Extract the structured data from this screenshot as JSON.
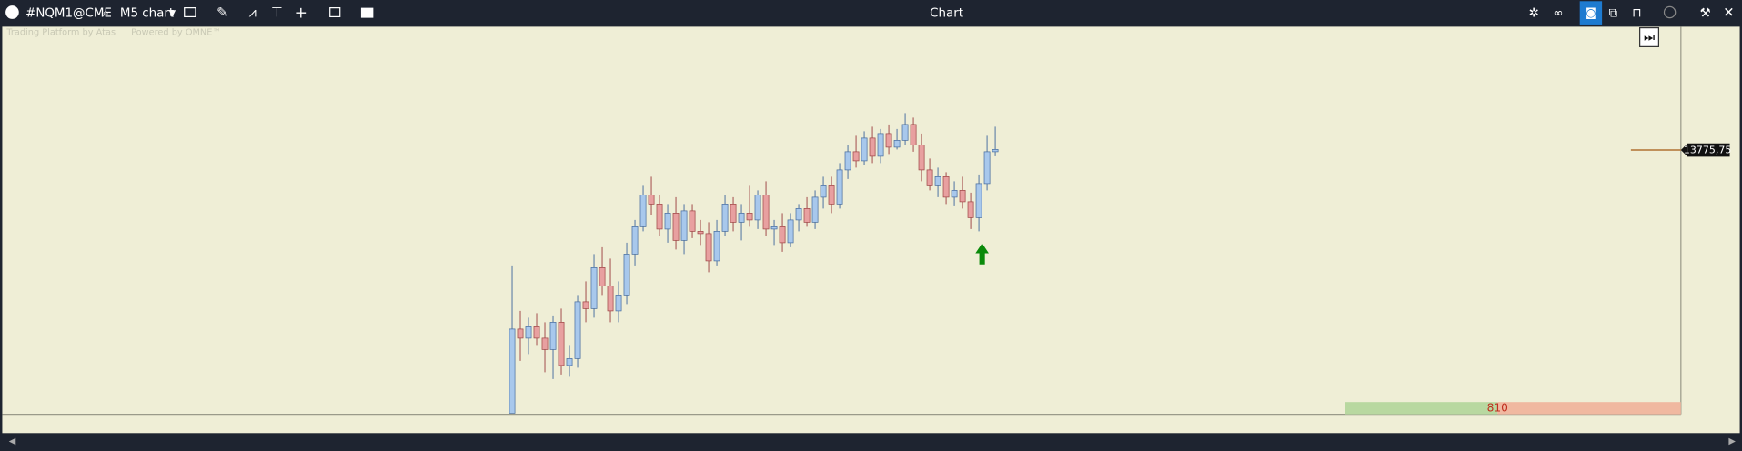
{
  "toolbar": {
    "symbol": "#NQM1@CME",
    "timeframe": "M5 chart",
    "title": "Chart"
  },
  "watermark": {
    "platform": "Trading Platform by Atas",
    "powered": "Powered by OMNE™"
  },
  "chart_data": {
    "type": "candlestick",
    "ylim": [
      13660,
      13830
    ],
    "last_price": {
      "value": 13775.75,
      "label": "13775,75"
    },
    "volume_label": "810",
    "candles": [
      [
        13660,
        13725,
        13660,
        13697
      ],
      [
        13697,
        13705,
        13683,
        13693
      ],
      [
        13693,
        13702,
        13686,
        13698
      ],
      [
        13698,
        13704,
        13690,
        13693
      ],
      [
        13693,
        13700,
        13678,
        13688
      ],
      [
        13688,
        13703,
        13675,
        13700
      ],
      [
        13700,
        13706,
        13677,
        13681
      ],
      [
        13681,
        13690,
        13676,
        13684
      ],
      [
        13684,
        13712,
        13680,
        13709
      ],
      [
        13709,
        13718,
        13700,
        13706
      ],
      [
        13706,
        13730,
        13702,
        13724
      ],
      [
        13724,
        13733,
        13712,
        13716
      ],
      [
        13716,
        13728,
        13700,
        13705
      ],
      [
        13705,
        13718,
        13700,
        13712
      ],
      [
        13712,
        13735,
        13708,
        13730
      ],
      [
        13730,
        13745,
        13725,
        13742
      ],
      [
        13742,
        13760,
        13740,
        13756
      ],
      [
        13756,
        13764,
        13747,
        13752
      ],
      [
        13752,
        13756,
        13738,
        13741
      ],
      [
        13741,
        13752,
        13735,
        13748
      ],
      [
        13748,
        13755,
        13732,
        13736
      ],
      [
        13736,
        13752,
        13730,
        13749
      ],
      [
        13749,
        13752,
        13737,
        13740
      ],
      [
        13740,
        13745,
        13734,
        13739
      ],
      [
        13739,
        13744,
        13722,
        13727
      ],
      [
        13727,
        13745,
        13725,
        13740
      ],
      [
        13740,
        13756,
        13738,
        13752
      ],
      [
        13752,
        13755,
        13740,
        13744
      ],
      [
        13744,
        13752,
        13736,
        13748
      ],
      [
        13748,
        13760,
        13742,
        13745
      ],
      [
        13745,
        13758,
        13741,
        13756
      ],
      [
        13756,
        13762,
        13738,
        13741
      ],
      [
        13741,
        13745,
        13734,
        13742
      ],
      [
        13742,
        13748,
        13731,
        13735
      ],
      [
        13735,
        13748,
        13733,
        13745
      ],
      [
        13745,
        13752,
        13740,
        13750
      ],
      [
        13750,
        13755,
        13742,
        13744
      ],
      [
        13744,
        13758,
        13741,
        13755
      ],
      [
        13755,
        13764,
        13750,
        13760
      ],
      [
        13760,
        13764,
        13748,
        13752
      ],
      [
        13752,
        13770,
        13750,
        13767
      ],
      [
        13767,
        13778,
        13763,
        13775
      ],
      [
        13775,
        13782,
        13768,
        13771
      ],
      [
        13771,
        13784,
        13769,
        13781
      ],
      [
        13781,
        13786,
        13770,
        13773
      ],
      [
        13773,
        13785,
        13770,
        13783
      ],
      [
        13783,
        13787,
        13774,
        13777
      ],
      [
        13777,
        13785,
        13776,
        13780
      ],
      [
        13780,
        13792,
        13778,
        13787
      ],
      [
        13787,
        13790,
        13775,
        13778
      ],
      [
        13778,
        13783,
        13762,
        13767
      ],
      [
        13767,
        13772,
        13758,
        13760
      ],
      [
        13760,
        13768,
        13755,
        13764
      ],
      [
        13764,
        13766,
        13752,
        13755
      ],
      [
        13755,
        13762,
        13751,
        13758
      ],
      [
        13758,
        13764,
        13750,
        13753
      ],
      [
        13753,
        13757,
        13741,
        13746
      ],
      [
        13746,
        13765,
        13740,
        13761
      ],
      [
        13761,
        13782,
        13758,
        13775
      ],
      [
        13775,
        13786,
        13773,
        13776
      ]
    ]
  }
}
